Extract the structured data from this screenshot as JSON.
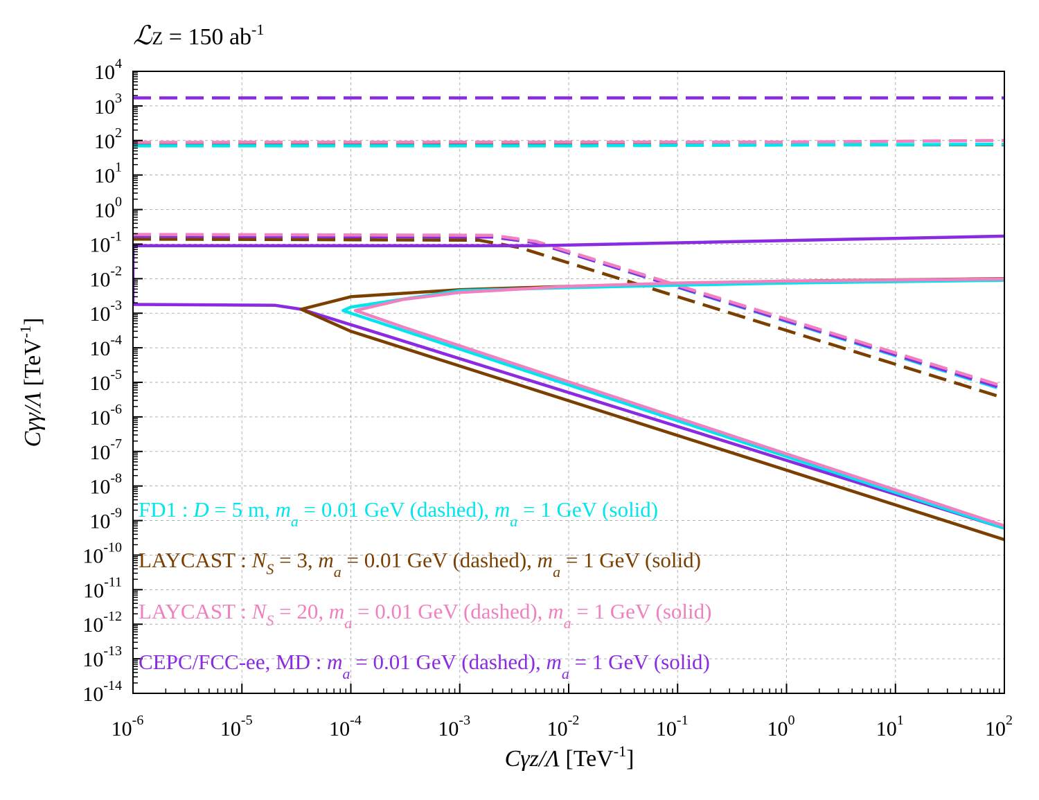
{
  "luminosity": {
    "symbol": "ℒ",
    "subscript": "Z",
    "rest": " = 150 ab",
    "exponent": "-1"
  },
  "chart_data": {
    "type": "line",
    "xscale": "log",
    "yscale": "log",
    "xlim": [
      1e-06,
      100
    ],
    "ylim": [
      1e-14,
      10000
    ],
    "grid": true,
    "xlabel": {
      "italic": "Cγz/Λ",
      "unit_pre": " [TeV",
      "unit_exp": "-1",
      "unit_post": "]"
    },
    "ylabel": {
      "italic": "Cγγ/Λ",
      "unit_pre": " [TeV",
      "unit_exp": "-1",
      "unit_post": "]"
    },
    "x_ticks": [
      {
        "value": 1e-06,
        "base": "10",
        "exp": "-6"
      },
      {
        "value": 1e-05,
        "base": "10",
        "exp": "-5"
      },
      {
        "value": 0.0001,
        "base": "10",
        "exp": "-4"
      },
      {
        "value": 0.001,
        "base": "10",
        "exp": "-3"
      },
      {
        "value": 0.01,
        "base": "10",
        "exp": "-2"
      },
      {
        "value": 0.1,
        "base": "10",
        "exp": "-1"
      },
      {
        "value": 1,
        "base": "10",
        "exp": "0"
      },
      {
        "value": 10,
        "base": "10",
        "exp": "1"
      },
      {
        "value": 100,
        "base": "10",
        "exp": "2"
      }
    ],
    "y_ticks": [
      {
        "value": 10000.0,
        "base": "10",
        "exp": "4"
      },
      {
        "value": 1000.0,
        "base": "10",
        "exp": "3"
      },
      {
        "value": 100.0,
        "base": "10",
        "exp": "2"
      },
      {
        "value": 10.0,
        "base": "10",
        "exp": "1"
      },
      {
        "value": 1,
        "base": "10",
        "exp": "0"
      },
      {
        "value": 0.1,
        "base": "10",
        "exp": "-1"
      },
      {
        "value": 0.01,
        "base": "10",
        "exp": "-2"
      },
      {
        "value": 0.001,
        "base": "10",
        "exp": "-3"
      },
      {
        "value": 0.0001,
        "base": "10",
        "exp": "-4"
      },
      {
        "value": 1e-05,
        "base": "10",
        "exp": "-5"
      },
      {
        "value": 1e-06,
        "base": "10",
        "exp": "-6"
      },
      {
        "value": 1e-07,
        "base": "10",
        "exp": "-7"
      },
      {
        "value": 1e-08,
        "base": "10",
        "exp": "-8"
      },
      {
        "value": 1e-09,
        "base": "10",
        "exp": "-9"
      },
      {
        "value": 1e-10,
        "base": "10",
        "exp": "-10"
      },
      {
        "value": 1e-11,
        "base": "10",
        "exp": "-11"
      },
      {
        "value": 1e-12,
        "base": "10",
        "exp": "-12"
      },
      {
        "value": 1e-13,
        "base": "10",
        "exp": "-13"
      },
      {
        "value": 1e-14,
        "base": "10",
        "exp": "-14"
      }
    ],
    "series": [
      {
        "name": "LAYCAST Ns=3 dashed upper",
        "color": "#7B3F00",
        "style": "dashed",
        "x": [
          1e-06,
          100
        ],
        "y": [
          75,
          75
        ]
      },
      {
        "name": "FD1 dashed upper",
        "color": "#00E5EE",
        "style": "dashed",
        "x": [
          1e-06,
          0.01,
          100
        ],
        "y": [
          70,
          70,
          78
        ]
      },
      {
        "name": "LAYCAST Ns=20 dashed upper",
        "color": "#F080C0",
        "style": "dashed",
        "x": [
          1e-06,
          1,
          100
        ],
        "y": [
          88,
          90,
          100
        ]
      },
      {
        "name": "CEPC/FCC-ee MD dashed upper",
        "color": "#8A2BE2",
        "style": "dashed",
        "x": [
          1e-06,
          100
        ],
        "y": [
          1700,
          1700
        ]
      },
      {
        "name": "LAYCAST Ns=3 dashed lower",
        "color": "#7B3F00",
        "style": "dashed",
        "x": [
          1e-06,
          0.0015,
          0.0035,
          100
        ],
        "y": [
          0.14,
          0.13,
          0.08,
          3.5e-06
        ]
      },
      {
        "name": "FD1 dashed lower",
        "color": "#00E5EE",
        "style": "dashed",
        "x": [
          1e-06,
          0.002,
          0.005,
          100
        ],
        "y": [
          0.17,
          0.16,
          0.11,
          6e-06
        ]
      },
      {
        "name": "CEPC/FCC-ee MD dashed lower",
        "color": "#8A2BE2",
        "style": "dashed",
        "x": [
          1e-06,
          0.002,
          0.005,
          100
        ],
        "y": [
          0.17,
          0.16,
          0.11,
          6.5e-06
        ]
      },
      {
        "name": "LAYCAST Ns=20 dashed lower",
        "color": "#F080C0",
        "style": "dashed",
        "x": [
          1e-06,
          0.002,
          0.005,
          100
        ],
        "y": [
          0.19,
          0.18,
          0.12,
          7.5e-06
        ]
      },
      {
        "name": "CEPC/FCC-ee MD solid",
        "color": "#8A2BE2",
        "style": "solid",
        "x": [
          1e-06,
          1e-06,
          0.005,
          100,
          100,
          0.005,
          1e-06,
          1e-06,
          2e-05,
          3.5e-05,
          100
        ],
        "y": [
          0.09,
          0.09,
          0.09,
          0.17,
          0.17,
          0.09,
          0.09,
          0.0018,
          0.0017,
          0.0013,
          6e-10
        ]
      },
      {
        "name": "LAYCAST Ns=3 solid",
        "color": "#7B3F00",
        "style": "solid",
        "x": [
          100,
          1,
          0.01,
          0.001,
          0.0001,
          3.5e-05,
          0.0001,
          100
        ],
        "y": [
          0.01,
          0.0085,
          0.006,
          0.0048,
          0.003,
          0.0013,
          0.0003,
          2.8e-10
        ]
      },
      {
        "name": "FD1 solid",
        "color": "#00E5EE",
        "style": "solid",
        "x": [
          100,
          1,
          0.1,
          0.01,
          0.001,
          0.0001,
          8.5e-05,
          0.0001,
          100
        ],
        "y": [
          0.009,
          0.0075,
          0.0065,
          0.0055,
          0.0045,
          0.0015,
          0.0012,
          0.001,
          6e-10
        ]
      },
      {
        "name": "LAYCAST Ns=20 solid",
        "color": "#F080C0",
        "style": "solid",
        "x": [
          100,
          1,
          0.1,
          0.01,
          0.001,
          0.0003,
          0.00011,
          0.0003,
          100
        ],
        "y": [
          0.0098,
          0.0085,
          0.0075,
          0.006,
          0.004,
          0.0025,
          0.0012,
          0.0004,
          7e-10
        ]
      }
    ]
  },
  "legend": [
    {
      "color": "#00E5EE",
      "prefix": "FD1 : ",
      "var1": "D",
      "text1": " = 5 m, ",
      "mass_sym": "m",
      "mass_sub": "a",
      "text2": " = 0.01 GeV (dashed), ",
      "text3": " = 1 GeV (solid)"
    },
    {
      "color": "#7B3F00",
      "prefix": "LAYCAST : ",
      "var1": "N",
      "var1_sub": "S",
      "text1": " = 3, ",
      "mass_sym": "m",
      "mass_sub": "a",
      "text2": " = 0.01 GeV (dashed), ",
      "text3": " = 1 GeV (solid)"
    },
    {
      "color": "#F080C0",
      "prefix": "LAYCAST : ",
      "var1": "N",
      "var1_sub": "S",
      "text1": " = 20,  ",
      "mass_sym": "m",
      "mass_sub": "a",
      "text2": " = 0.01 GeV (dashed), ",
      "text3": " = 1 GeV (solid)"
    },
    {
      "color": "#8A2BE2",
      "prefix": "CEPC/FCC-ee, MD : ",
      "mass_sym": "m",
      "mass_sub": "a",
      "text2": " = 0.01 GeV (dashed), ",
      "text3": " = 1 GeV (solid)"
    }
  ]
}
